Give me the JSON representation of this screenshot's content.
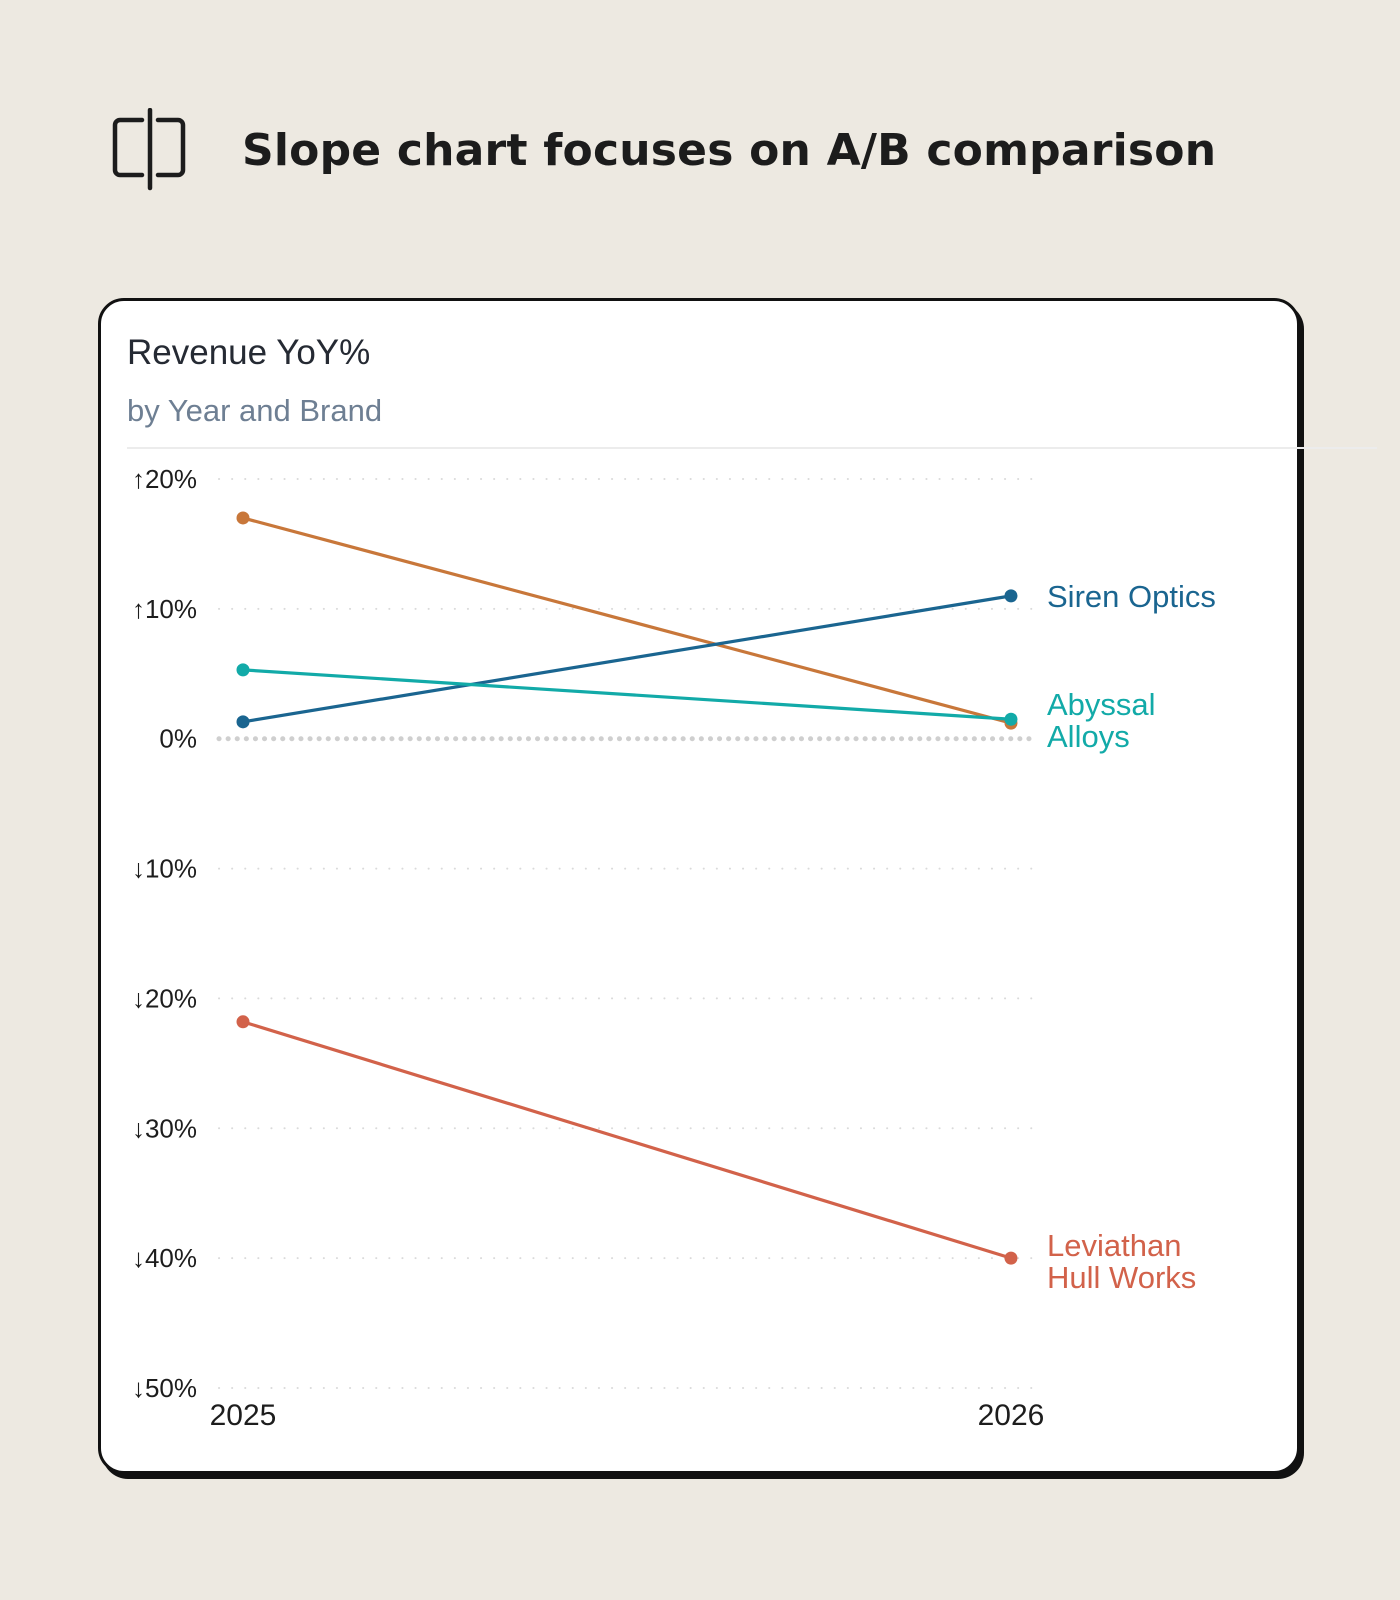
{
  "header": {
    "title": "Slope chart focuses on A/B comparison",
    "icon": "split-compare-icon"
  },
  "card": {
    "title": "Revenue YoY%",
    "subtitle": "by Year and Brand"
  },
  "chart_data": {
    "type": "line",
    "x": [
      "2025",
      "2026"
    ],
    "ylim": [
      -50,
      20
    ],
    "yticks": [
      {
        "value": 20,
        "label": "↑20%"
      },
      {
        "value": 10,
        "label": "↑10%"
      },
      {
        "value": 0,
        "label": "0%"
      },
      {
        "value": -10,
        "label": "↓10%"
      },
      {
        "value": -20,
        "label": "↓20%"
      },
      {
        "value": -30,
        "label": "↓30%"
      },
      {
        "value": -40,
        "label": "↓40%"
      },
      {
        "value": -50,
        "label": "↓50%"
      }
    ],
    "grid": true,
    "series": [
      {
        "name": "",
        "values": [
          17,
          1.2
        ],
        "color": "#c8773a",
        "label_lines": []
      },
      {
        "name": "Siren Optics",
        "values": [
          1.3,
          11
        ],
        "color": "#1a6590",
        "label_lines": [
          "Siren Optics"
        ]
      },
      {
        "name": "Abyssal Alloys",
        "values": [
          5.3,
          1.5
        ],
        "color": "#12aaa8",
        "label_lines": [
          "Abyssal",
          "Alloys"
        ]
      },
      {
        "name": "Leviathan Hull Works",
        "values": [
          -21.8,
          -40
        ],
        "color": "#d2624a",
        "label_lines": [
          "Leviathan",
          "Hull Works"
        ]
      }
    ]
  }
}
